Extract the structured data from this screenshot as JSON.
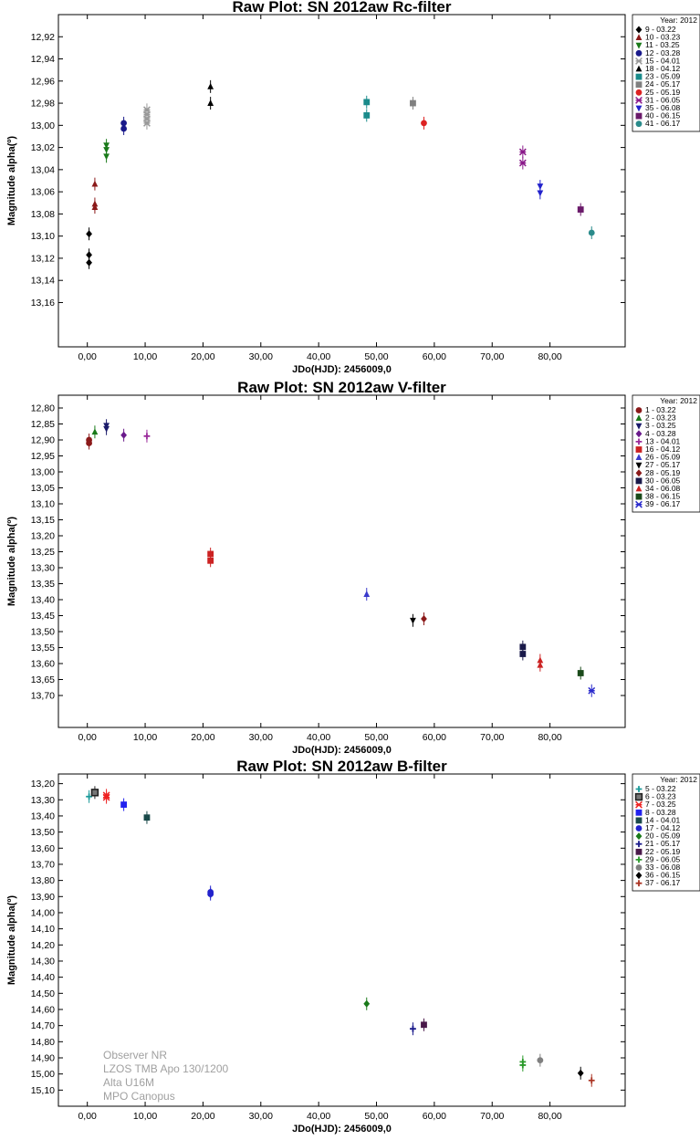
{
  "chart_data": [
    {
      "type": "scatter",
      "title": "Raw Plot: SN 2012aw Rc-filter",
      "xlabel": "JDo(HJD): 2456009,0",
      "ylabel": "Magnitude alpha(º)",
      "xlim": [
        -5,
        93
      ],
      "ylim": [
        12.9,
        13.2
      ],
      "y_inverted": true,
      "xticks": [
        "0,00",
        "10,00",
        "20,00",
        "30,00",
        "40,00",
        "50,00",
        "60,00",
        "70,00",
        "80,00"
      ],
      "yticks": [
        "12,92",
        "12,94",
        "12,96",
        "12,98",
        "13,00",
        "13,02",
        "13,04",
        "13,06",
        "13,08",
        "13,10",
        "13,12",
        "13,14",
        "13,16"
      ],
      "legend_title": "Year: 2012",
      "legend_position": "top-right",
      "grid": false,
      "series": [
        {
          "name": "9 - 03.22",
          "color": "#000000",
          "marker": "diamond",
          "points": [
            [
              0.3,
              13.098
            ],
            [
              0.3,
              13.117
            ],
            [
              0.3,
              13.124
            ]
          ]
        },
        {
          "name": "10 - 03.23",
          "color": "#8b1a1a",
          "marker": "triangle",
          "points": [
            [
              1.3,
              13.053
            ],
            [
              1.3,
              13.071
            ],
            [
              1.3,
              13.074
            ]
          ]
        },
        {
          "name": "11 - 03.25",
          "color": "#1a7a1a",
          "marker": "tri-down",
          "points": [
            [
              3.3,
              13.018
            ],
            [
              3.3,
              13.022
            ],
            [
              3.3,
              13.028
            ]
          ]
        },
        {
          "name": "12 - 03.28",
          "color": "#1a1a8b",
          "marker": "circle",
          "points": [
            [
              6.3,
              12.998
            ],
            [
              6.3,
              13.003
            ]
          ]
        },
        {
          "name": "15 - 04.01",
          "color": "#999999",
          "marker": "asterisk",
          "points": [
            [
              10.3,
              12.986
            ],
            [
              10.3,
              12.99
            ],
            [
              10.3,
              12.994
            ],
            [
              10.3,
              12.998
            ]
          ]
        },
        {
          "name": "18 - 04.12",
          "color": "#000000",
          "marker": "triangle",
          "points": [
            [
              21.3,
              12.965
            ],
            [
              21.3,
              12.98
            ]
          ]
        },
        {
          "name": "23 - 05.09",
          "color": "#1a8b8b",
          "marker": "x-square",
          "points": [
            [
              48.3,
              12.979
            ],
            [
              48.3,
              12.991
            ]
          ]
        },
        {
          "name": "24 - 05.17",
          "color": "#808080",
          "marker": "square",
          "points": [
            [
              56.3,
              12.98
            ]
          ]
        },
        {
          "name": "25 - 05.19",
          "color": "#dd2222",
          "marker": "circle",
          "points": [
            [
              58.2,
              12.998
            ]
          ]
        },
        {
          "name": "31 - 06.05",
          "color": "#8b1a8b",
          "marker": "asterisk",
          "points": [
            [
              75.3,
              13.024
            ],
            [
              75.3,
              13.034
            ]
          ]
        },
        {
          "name": "35 - 06.08",
          "color": "#2222cc",
          "marker": "tri-down",
          "points": [
            [
              78.3,
              13.055
            ],
            [
              78.3,
              13.061
            ]
          ]
        },
        {
          "name": "40 - 06.15",
          "color": "#6a1a6a",
          "marker": "square",
          "points": [
            [
              85.3,
              13.076
            ]
          ]
        },
        {
          "name": "41 - 06.17",
          "color": "#2a8b8b",
          "marker": "circle",
          "points": [
            [
              87.2,
              13.097
            ]
          ]
        }
      ]
    },
    {
      "type": "scatter",
      "title": "Raw Plot: SN 2012aw V-filter",
      "xlabel": "JDo(HJD): 2456009,0",
      "ylabel": "Magnitude alpha(º)",
      "xlim": [
        -5,
        93
      ],
      "ylim": [
        12.76,
        13.8
      ],
      "y_inverted": true,
      "xticks": [
        "0,00",
        "10,00",
        "20,00",
        "30,00",
        "40,00",
        "50,00",
        "60,00",
        "70,00",
        "80,00"
      ],
      "yticks": [
        "12,80",
        "12,85",
        "12,90",
        "12,95",
        "13,00",
        "13,05",
        "13,10",
        "13,15",
        "13,20",
        "13,25",
        "13,30",
        "13,35",
        "13,40",
        "13,45",
        "13,50",
        "13,55",
        "13,60",
        "13,65",
        "13,70"
      ],
      "legend_title": "Year: 2012",
      "legend_position": "top-right",
      "grid": false,
      "series": [
        {
          "name": "1 - 03.22",
          "color": "#8b1a1a",
          "marker": "circle",
          "points": [
            [
              0.3,
              12.9
            ],
            [
              0.3,
              12.91
            ]
          ]
        },
        {
          "name": "2 - 03.23",
          "color": "#1a7a1a",
          "marker": "triangle",
          "points": [
            [
              1.3,
              12.875
            ]
          ]
        },
        {
          "name": "3 - 03.25",
          "color": "#1a1a6a",
          "marker": "tri-down",
          "points": [
            [
              3.3,
              12.855
            ],
            [
              3.3,
              12.865
            ]
          ]
        },
        {
          "name": "4 - 03.28",
          "color": "#6a1a8b",
          "marker": "diamond",
          "points": [
            [
              6.3,
              12.885
            ]
          ]
        },
        {
          "name": "13 - 04.01",
          "color": "#9a2a9a",
          "marker": "cross",
          "points": [
            [
              10.3,
              12.888
            ]
          ]
        },
        {
          "name": "16 - 04.12",
          "color": "#cc2222",
          "marker": "square",
          "points": [
            [
              21.3,
              13.257
            ],
            [
              21.3,
              13.278
            ]
          ]
        },
        {
          "name": "26 - 05.09",
          "color": "#3a3acc",
          "marker": "triangle",
          "points": [
            [
              48.3,
              13.383
            ]
          ]
        },
        {
          "name": "27 - 05.17",
          "color": "#000000",
          "marker": "tri-down",
          "points": [
            [
              56.3,
              13.465
            ]
          ]
        },
        {
          "name": "28 - 05.19",
          "color": "#8b1a1a",
          "marker": "diamond",
          "points": [
            [
              58.2,
              13.46
            ]
          ]
        },
        {
          "name": "30 - 06.05",
          "color": "#1a1a4a",
          "marker": "square",
          "points": [
            [
              75.3,
              13.548
            ],
            [
              75.3,
              13.57
            ]
          ]
        },
        {
          "name": "34 - 06.08",
          "color": "#cc2222",
          "marker": "triangle",
          "points": [
            [
              78.3,
              13.59
            ],
            [
              78.3,
              13.605
            ]
          ]
        },
        {
          "name": "38 - 06.15",
          "color": "#1a4a1a",
          "marker": "square",
          "points": [
            [
              85.3,
              13.63
            ]
          ]
        },
        {
          "name": "39 - 06.17",
          "color": "#2a2acc",
          "marker": "asterisk",
          "points": [
            [
              87.2,
              13.685
            ]
          ]
        }
      ]
    },
    {
      "type": "scatter",
      "title": "Raw Plot: SN 2012aw B-filter",
      "xlabel": "JDo(HJD): 2456009,0",
      "ylabel": "Magnitude alpha(º)",
      "xlim": [
        -5,
        93
      ],
      "ylim": [
        13.14,
        15.2
      ],
      "y_inverted": true,
      "xticks": [
        "0,00",
        "10,00",
        "20,00",
        "30,00",
        "40,00",
        "50,00",
        "60,00",
        "70,00",
        "80,00"
      ],
      "yticks": [
        "13,20",
        "13,30",
        "13,40",
        "13,50",
        "13,60",
        "13,70",
        "13,80",
        "13,90",
        "14,00",
        "14,10",
        "14,20",
        "14,30",
        "14,40",
        "14,50",
        "14,60",
        "14,70",
        "14,80",
        "14,90",
        "15,00",
        "15,10"
      ],
      "legend_title": "Year: 2012",
      "legend_position": "top-right",
      "grid": false,
      "annotation_lines": [
        "Observer NR",
        "LZOS TMB Apo 130/1200",
        "Alta U16M",
        "MPO Canopus"
      ],
      "series": [
        {
          "name": "5 - 03.22",
          "color": "#1a9a9a",
          "marker": "cross",
          "points": [
            [
              0.3,
              13.28
            ]
          ]
        },
        {
          "name": "6 - 03.23",
          "color": "#222222",
          "marker": "square-outline",
          "points": [
            [
              1.3,
              13.255
            ]
          ]
        },
        {
          "name": "7 - 03.25",
          "color": "#ee2222",
          "marker": "asterisk",
          "points": [
            [
              3.3,
              13.272
            ],
            [
              3.3,
              13.285
            ]
          ]
        },
        {
          "name": "8 - 03.28",
          "color": "#2222ee",
          "marker": "square",
          "points": [
            [
              6.3,
              13.33
            ]
          ]
        },
        {
          "name": "14 - 04.01",
          "color": "#1a4a4a",
          "marker": "square",
          "points": [
            [
              10.3,
              13.41
            ]
          ]
        },
        {
          "name": "17 - 04.12",
          "color": "#2222cc",
          "marker": "circle",
          "points": [
            [
              21.3,
              13.872
            ],
            [
              21.3,
              13.885
            ]
          ]
        },
        {
          "name": "20 - 05.09",
          "color": "#1a7a1a",
          "marker": "diamond",
          "points": [
            [
              48.3,
              14.565
            ]
          ]
        },
        {
          "name": "21 - 05.17",
          "color": "#1a1a8b",
          "marker": "cross",
          "points": [
            [
              56.3,
              14.72
            ]
          ]
        },
        {
          "name": "22 - 05.19",
          "color": "#4a1a4a",
          "marker": "square",
          "points": [
            [
              58.2,
              14.695
            ]
          ]
        },
        {
          "name": "29 - 06.05",
          "color": "#2a9a2a",
          "marker": "cross",
          "points": [
            [
              75.3,
              14.925
            ],
            [
              75.3,
              14.945
            ]
          ]
        },
        {
          "name": "33 - 06.08",
          "color": "#808080",
          "marker": "circle",
          "points": [
            [
              78.3,
              14.915
            ]
          ]
        },
        {
          "name": "36 - 06.15",
          "color": "#000000",
          "marker": "diamond",
          "points": [
            [
              85.3,
              14.995
            ]
          ]
        },
        {
          "name": "37 - 06.17",
          "color": "#aa3322",
          "marker": "cross",
          "points": [
            [
              87.2,
              15.04
            ]
          ]
        }
      ]
    }
  ]
}
